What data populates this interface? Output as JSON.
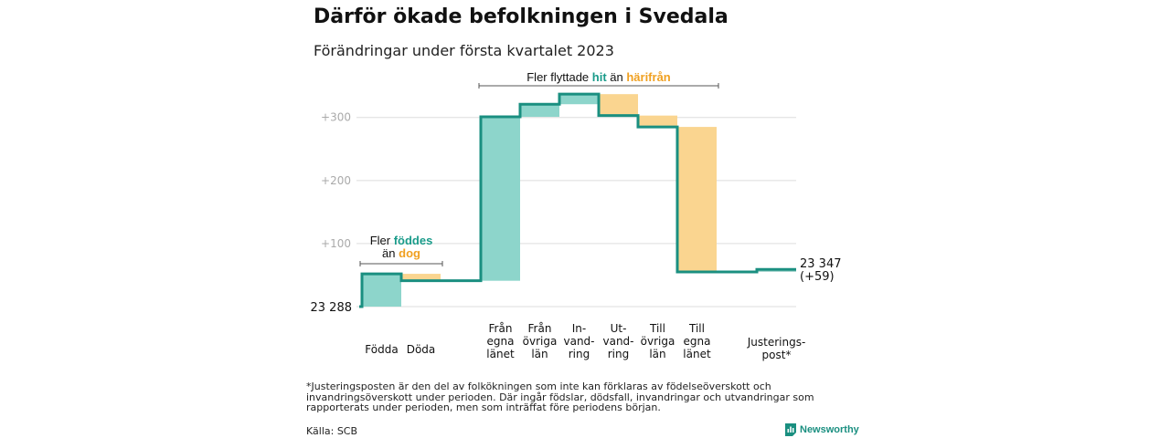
{
  "title": "Därför ökade befolkningen i Svedala",
  "subtitle": "Förändringar under första kvartalet 2023",
  "footnote": "*Justeringsposten är den del av folkökningen som inte kan förklaras av födelseöverskott och invandringsöverskott under perioden. Där ingår födslar, dödsfall, invandringar och utvandringar som rapporterats under perioden, men som inträffat före periodens början.",
  "source": "Källa: SCB",
  "brand": "Newsworthy",
  "brand_icon": "newsworthy-logo-icon",
  "colors": {
    "increase": "#8dd5cb",
    "decrease": "#fad590",
    "line": "#1a8f80",
    "adjustment": "#a9d6cf",
    "grid": "#dddddd",
    "axis_text": "#aaaaaa",
    "highlight_increase": "#1a9b8a",
    "highlight_decrease": "#f0a020"
  },
  "chart_data": {
    "type": "waterfall",
    "start_label": "23 288",
    "end_label_lines": [
      "23 347",
      "(+59)"
    ],
    "ylim": [
      0,
      330
    ],
    "yticks": [
      {
        "value": 100,
        "label": "+100"
      },
      {
        "value": 200,
        "label": "+200"
      },
      {
        "value": 300,
        "label": "+300"
      }
    ],
    "grid": true,
    "steps": [
      {
        "label": [
          "Födda"
        ],
        "change": 52
      },
      {
        "label": [
          "Döda"
        ],
        "change": -11
      },
      {
        "label": [
          "Från",
          "egna",
          "länet"
        ],
        "change": 260
      },
      {
        "label": [
          "Från",
          "övriga",
          "län"
        ],
        "change": 20
      },
      {
        "label": [
          "In-",
          "vand-",
          "ring"
        ],
        "change": 16
      },
      {
        "label": [
          "Ut-",
          "vand-",
          "ring"
        ],
        "change": -34
      },
      {
        "label": [
          "Till",
          "övriga",
          "län"
        ],
        "change": -18
      },
      {
        "label": [
          "Till",
          "egna",
          "länet"
        ],
        "change": -230
      },
      {
        "label": [
          "Justerings-",
          "post*"
        ],
        "change": 4
      }
    ],
    "annotations": [
      {
        "steps": [
          0,
          1
        ],
        "parts": [
          {
            "line": 0,
            "text": "Fler ",
            "style": "normal"
          },
          {
            "line": 0,
            "text": "föddes",
            "style": "increase"
          },
          {
            "line": 1,
            "text": "än ",
            "style": "normal"
          },
          {
            "line": 1,
            "text": "dog",
            "style": "decrease"
          }
        ]
      },
      {
        "steps": [
          2,
          7
        ],
        "parts": [
          {
            "line": 0,
            "text": "Fler flyttade ",
            "style": "normal"
          },
          {
            "line": 0,
            "text": "hit",
            "style": "increase"
          },
          {
            "line": 0,
            "text": " än ",
            "style": "normal"
          },
          {
            "line": 0,
            "text": "härifrån",
            "style": "decrease"
          }
        ]
      }
    ]
  }
}
